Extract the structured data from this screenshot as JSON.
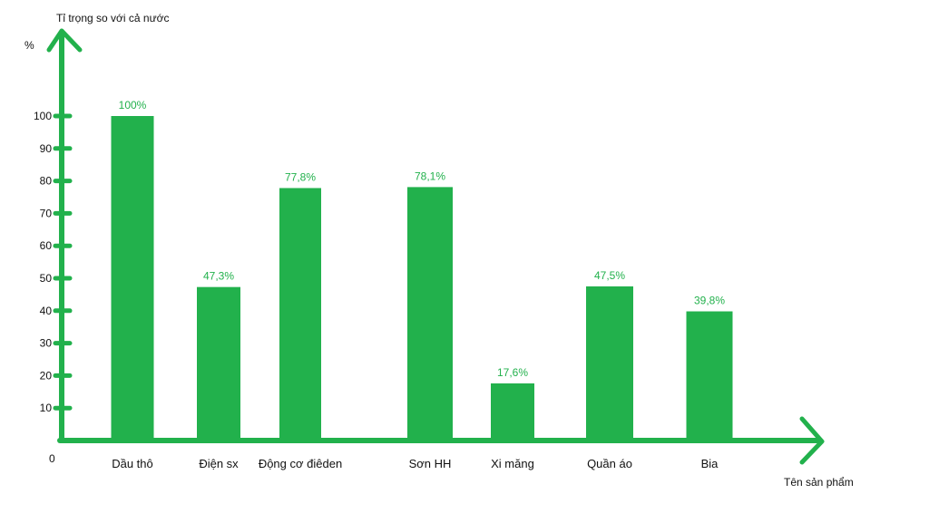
{
  "chart_data": {
    "type": "bar",
    "title": "",
    "ylabel": "Tỉ trọng so với cả nước",
    "yunit": "%",
    "xlabel": "Tên sản phẩm",
    "origin_label": "0",
    "categories": [
      "Dầu thô",
      "Điện sx",
      "Động cơ điêden",
      "Sơn HH",
      "Xi măng",
      "Quần áo",
      "Bia"
    ],
    "values": [
      100,
      47.3,
      77.8,
      78.1,
      17.6,
      47.5,
      39.8
    ],
    "value_labels": [
      "100%",
      "47,3%",
      "77,8%",
      "78,1%",
      "17,6%",
      "47,5%",
      "39,8%"
    ],
    "yticks": [
      10,
      20,
      30,
      40,
      50,
      60,
      70,
      80,
      90,
      100
    ],
    "ylim": [
      0,
      100
    ],
    "grid": false,
    "colors": {
      "bar": "#22b14c",
      "axis": "#22b14c",
      "value_label": "#22b14c"
    }
  }
}
